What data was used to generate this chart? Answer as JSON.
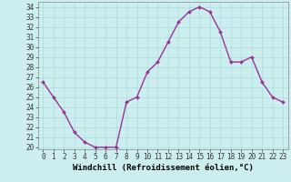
{
  "x": [
    0,
    1,
    2,
    3,
    4,
    5,
    6,
    7,
    8,
    9,
    10,
    11,
    12,
    13,
    14,
    15,
    16,
    17,
    18,
    19,
    20,
    21,
    22,
    23
  ],
  "y": [
    26.5,
    25.0,
    23.5,
    21.5,
    20.5,
    20.0,
    20.0,
    20.0,
    24.5,
    25.0,
    27.5,
    28.5,
    30.5,
    32.5,
    33.5,
    34.0,
    33.5,
    31.5,
    28.5,
    28.5,
    29.0,
    26.5,
    25.0,
    24.5
  ],
  "line_color": "#993399",
  "marker": "D",
  "marker_size": 2.0,
  "bg_color": "#cceeee",
  "grid_color": "#aadddd",
  "xlabel": "Windchill (Refroidissement éolien,°C)",
  "xlim": [
    -0.5,
    23.5
  ],
  "ylim": [
    19.8,
    34.5
  ],
  "yticks": [
    20,
    21,
    22,
    23,
    24,
    25,
    26,
    27,
    28,
    29,
    30,
    31,
    32,
    33,
    34
  ],
  "xticks": [
    0,
    1,
    2,
    3,
    4,
    5,
    6,
    7,
    8,
    9,
    10,
    11,
    12,
    13,
    14,
    15,
    16,
    17,
    18,
    19,
    20,
    21,
    22,
    23
  ],
  "tick_fontsize": 5.5,
  "label_fontsize": 6.5,
  "line_width": 1.0
}
